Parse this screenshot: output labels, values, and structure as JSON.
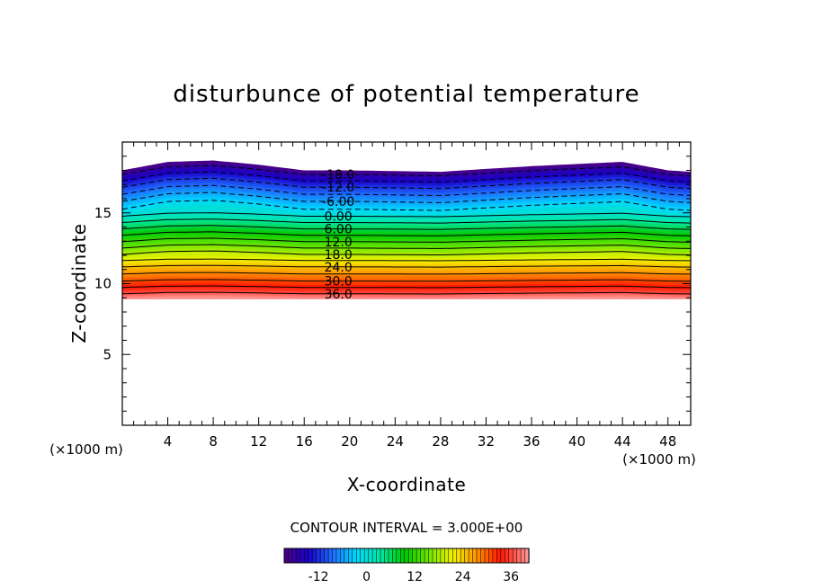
{
  "chart_data": {
    "type": "contour",
    "title": "disturbunce of potential temperature",
    "xlabel": "X-coordinate",
    "ylabel": "Z-coordinate",
    "x_unit": "(×1000 m)",
    "y_unit": "(×1000 m)",
    "xlim": [
      0,
      50
    ],
    "ylim": [
      0,
      20
    ],
    "x_ticks": [
      4,
      8,
      12,
      16,
      20,
      24,
      28,
      32,
      36,
      40,
      44,
      48
    ],
    "y_ticks": [
      5,
      10,
      15
    ],
    "contour_interval_label": "CONTOUR INTERVAL = 3.000E+00",
    "contour_labels": [
      "-18.0",
      "-12.0",
      "-6.00",
      "0.00",
      "6.00",
      "12.0",
      "18.0",
      "24.0",
      "30.0",
      "36.0"
    ],
    "contour_label_x": 19,
    "field": {
      "cloud_top_z": [
        [
          0,
          18.0
        ],
        [
          4,
          18.6
        ],
        [
          8,
          18.7
        ],
        [
          12,
          18.4
        ],
        [
          16,
          18.0
        ],
        [
          20,
          18.0
        ],
        [
          28,
          17.9
        ],
        [
          36,
          18.3
        ],
        [
          44,
          18.6
        ],
        [
          48,
          18.0
        ],
        [
          50,
          17.9
        ]
      ],
      "cloud_base_z": 8.9,
      "z_at_value": [
        {
          "value": -21,
          "z": 18.0
        },
        {
          "value": -18,
          "z": 17.8
        },
        {
          "value": -12,
          "z": 16.9
        },
        {
          "value": -6,
          "z": 15.9
        },
        {
          "value": 0,
          "z": 14.8
        },
        {
          "value": 6,
          "z": 13.9
        },
        {
          "value": 12,
          "z": 13.0
        },
        {
          "value": 18,
          "z": 12.1
        },
        {
          "value": 24,
          "z": 11.2
        },
        {
          "value": 30,
          "z": 10.2
        },
        {
          "value": 36,
          "z": 9.3
        },
        {
          "value": 40,
          "z": 8.9
        }
      ]
    },
    "colorbar": {
      "min": -21,
      "max": 40,
      "tick_labels": [
        "-12",
        "0",
        "12",
        "24",
        "36"
      ],
      "tick_values": [
        -12,
        0,
        12,
        24,
        36
      ]
    },
    "colors": {
      "deep_negative": "#4b0082",
      "negative": "#0000ff",
      "zero": "#00e5ff",
      "mid": "#00c800",
      "warm": "#f2f200",
      "hot": "#ff0000",
      "max": "#ff9a9a"
    }
  }
}
